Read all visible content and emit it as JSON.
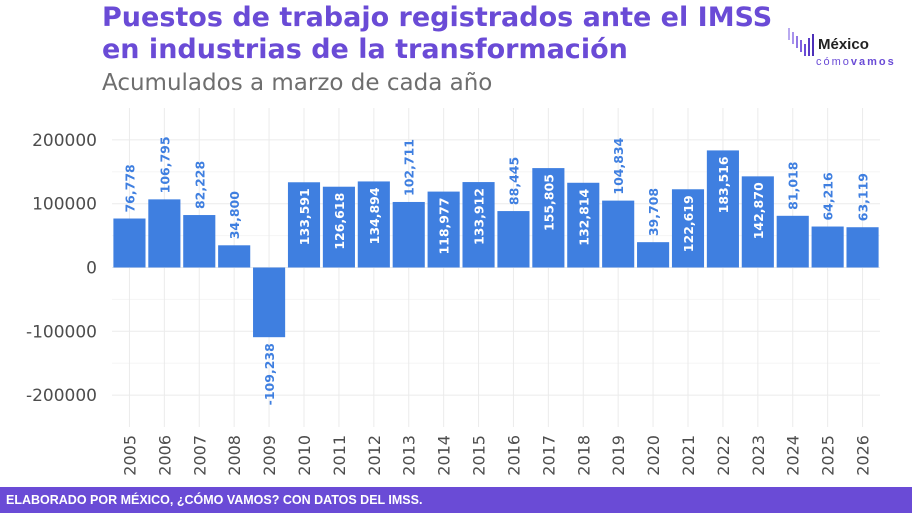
{
  "header": {
    "title_line1": "Puestos de trabajo registrados ante el IMSS",
    "title_line2": "en industrias de la transformación",
    "subtitle": "Acumulados a marzo de cada año"
  },
  "logo": {
    "name": "México",
    "sub_light": "cómo",
    "sub_bold": "vamos"
  },
  "footer": {
    "text": "ELABORADO POR MÉXICO, ¿CÓMO VAMOS? CON DATOS DEL IMSS."
  },
  "colors": {
    "bar": "#3f7fe0",
    "label": "#3f7fe0",
    "accent": "#6a4bd6"
  },
  "chart_data": {
    "type": "bar",
    "title": "Puestos de trabajo registrados ante el IMSS en industrias de la transformación",
    "subtitle": "Acumulados a marzo de cada año",
    "xlabel": "",
    "ylabel": "",
    "ylim": [
      -250000,
      250000
    ],
    "yticks": [
      200000,
      100000,
      0,
      -100000,
      -200000
    ],
    "ytick_labels": [
      "200000",
      "100000",
      "0",
      "-100000",
      "-200000"
    ],
    "categories": [
      "2005",
      "2006",
      "2007",
      "2008",
      "2009",
      "2010",
      "2011",
      "2012",
      "2013",
      "2014",
      "2015",
      "2016",
      "2017",
      "2018",
      "2019",
      "2020",
      "2021",
      "2022",
      "2023",
      "2024",
      "2025",
      "2026"
    ],
    "values": [
      76778,
      106795,
      82228,
      34800,
      -109238,
      133591,
      126618,
      134894,
      102711,
      118977,
      133912,
      88445,
      155805,
      132814,
      104834,
      39708,
      122619,
      183516,
      142870,
      81018,
      64216,
      63119
    ],
    "labels": [
      "76,778",
      "106,795",
      "82,228",
      "34,800",
      "-109,238",
      "133,591",
      "126,618",
      "134,894",
      "102,711",
      "118,977",
      "133,912",
      "88,445",
      "155,805",
      "132,814",
      "104,834",
      "39,708",
      "122,619",
      "183,516",
      "142,870",
      "81,018",
      "64,216",
      "63,119"
    ]
  }
}
